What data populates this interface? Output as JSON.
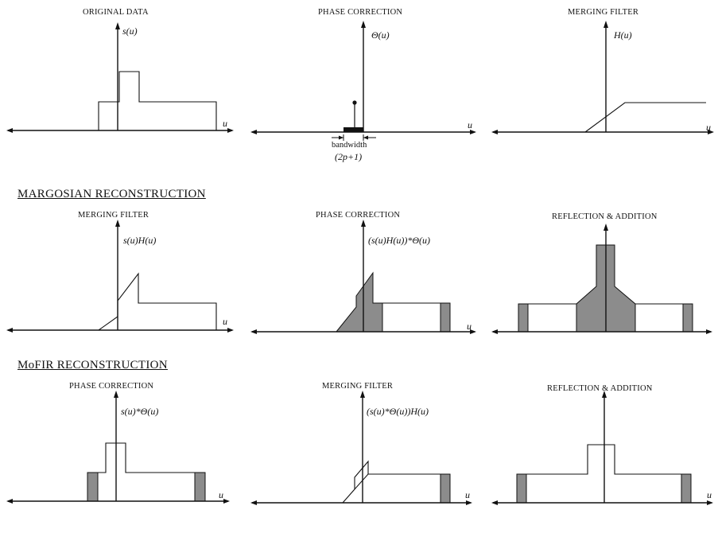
{
  "axis_symbol": "u",
  "sections": {
    "margosian": "MARGOSIAN RECONSTRUCTION",
    "mofir": "MoFIR RECONSTRUCTION"
  },
  "row1": {
    "original": {
      "title": "ORIGINAL DATA",
      "func": "s(u)"
    },
    "phase": {
      "title": "PHASE CORRECTION",
      "func": "Θ(u)",
      "bandwidth_label": "bandwidth",
      "bandwidth_expr": "(2p+1)"
    },
    "merge": {
      "title": "MERGING FILTER",
      "func": "H(u)"
    }
  },
  "row2": {
    "merge": {
      "title": "MERGING FILTER",
      "func": "s(u)H(u)"
    },
    "phase": {
      "title": "PHASE CORRECTION",
      "func": "(s(u)H(u))*Θ(u)"
    },
    "reflect": {
      "title": "REFLECTION & ADDITION"
    }
  },
  "row3": {
    "phase": {
      "title": "PHASE CORRECTION",
      "func": "s(u)*Θ(u)"
    },
    "merge": {
      "title": "MERGING FILTER",
      "func": "(s(u)*Θ(u))H(u)"
    },
    "reflect": {
      "title": "REFLECTION & ADDITION"
    }
  }
}
